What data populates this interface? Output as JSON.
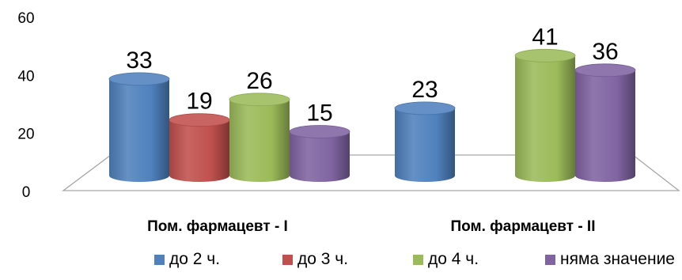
{
  "chart_data": {
    "type": "bar",
    "style": "3d-cylinder",
    "categories": [
      "Пом. фармацевт - I",
      "Пом. фармацевт - II"
    ],
    "series": [
      {
        "name": "до 2 ч.",
        "color": "#4f81bd",
        "values": [
          33,
          23
        ]
      },
      {
        "name": "до 3 ч.",
        "color": "#c0504d",
        "values": [
          19,
          null
        ]
      },
      {
        "name": "до 4 ч.",
        "color": "#9bbb59",
        "values": [
          26,
          41
        ]
      },
      {
        "name": "няма значение",
        "color": "#8064a2",
        "values": [
          15,
          36
        ]
      }
    ],
    "yticks": [
      "0",
      "20",
      "40",
      "60"
    ],
    "ylim": [
      0,
      60
    ],
    "grid": false,
    "legend_position": "bottom",
    "title": "",
    "xlabel": "",
    "ylabel": ""
  }
}
